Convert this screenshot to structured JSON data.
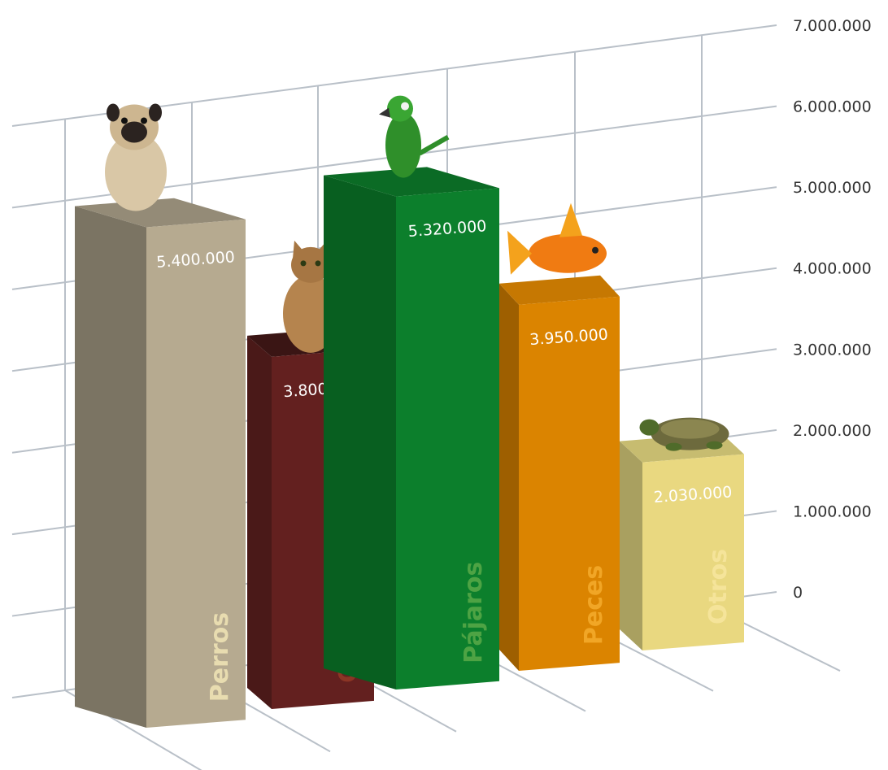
{
  "chart_data": {
    "type": "bar",
    "title": "",
    "xlabel": "",
    "ylabel": "",
    "categories": [
      "Perros",
      "Gatos",
      "Pájaros",
      "Peces",
      "Otros"
    ],
    "values": [
      5400000,
      3800000,
      5320000,
      3950000,
      2030000
    ],
    "value_labels": [
      "5.400.000",
      "3.800.000",
      "5.320.000",
      "3.950.000",
      "2.030.000"
    ],
    "ylim": [
      0,
      7000000
    ],
    "yticks": [
      0,
      1000000,
      2000000,
      3000000,
      4000000,
      5000000,
      6000000,
      7000000
    ],
    "ytick_labels": [
      "0",
      "1.000.000",
      "2.000.000",
      "3.000.000",
      "4.000.000",
      "5.000.000",
      "6.000.000",
      "7.000.000"
    ],
    "grid": true,
    "style": "3d-perspective",
    "icons": [
      "pug-dog-icon",
      "tabby-cat-icon",
      "parrot-icon",
      "goldfish-icon",
      "turtle-icon"
    ],
    "colors": {
      "front": [
        "#b6aa90",
        "#63201f",
        "#0c7f2c",
        "#db8400",
        "#e9d880"
      ],
      "side": [
        "#7b7463",
        "#4a1918",
        "#085f20",
        "#9e5f00",
        "#a9a060"
      ],
      "top": [
        "#948b77",
        "#3a1514",
        "#0b6b25",
        "#c67802",
        "#c7bc70"
      ],
      "label": [
        "#e8dcb0",
        "#8c3525",
        "#4ea344",
        "#f1a626",
        "#f5e49a"
      ],
      "grid": "#b9c0c8"
    }
  }
}
